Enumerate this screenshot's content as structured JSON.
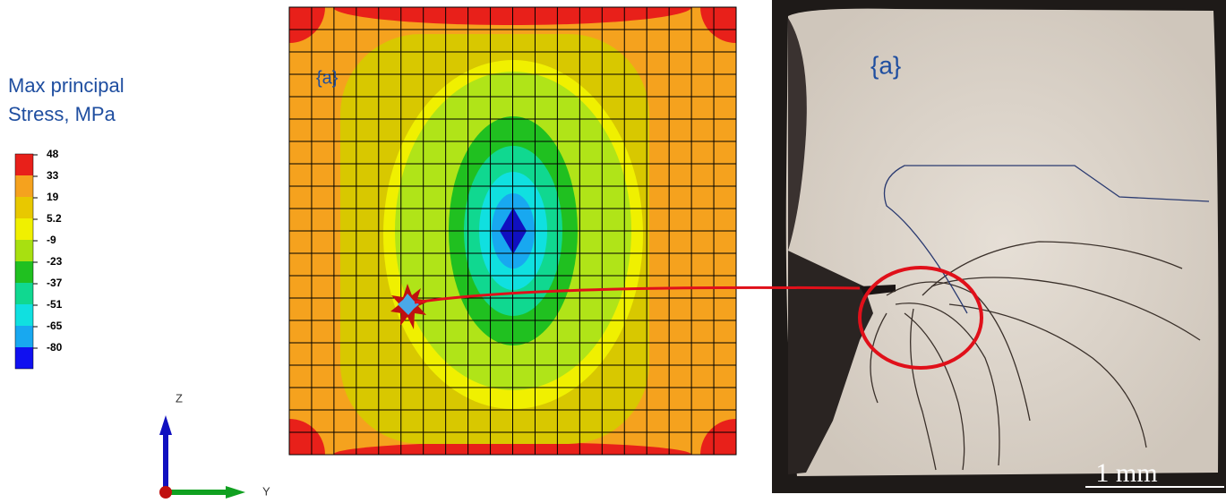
{
  "legend": {
    "title": [
      "Max principal",
      "Stress, MPa"
    ],
    "ticks": [
      48,
      33,
      19,
      5.2,
      -9,
      -23,
      -37,
      -51,
      -65,
      -80
    ],
    "colors": [
      "#e8201a",
      "#f5a21e",
      "#e8c800",
      "#f0f000",
      "#a8e010",
      "#20c020",
      "#10d890",
      "#10e0e0",
      "#18a8f0",
      "#1010f0"
    ]
  },
  "triad": {
    "z": "Z",
    "y": "Y"
  },
  "simulation": {
    "label": "{a}"
  },
  "photo": {
    "label": "{a}",
    "scale_bar": "1 mm"
  }
}
